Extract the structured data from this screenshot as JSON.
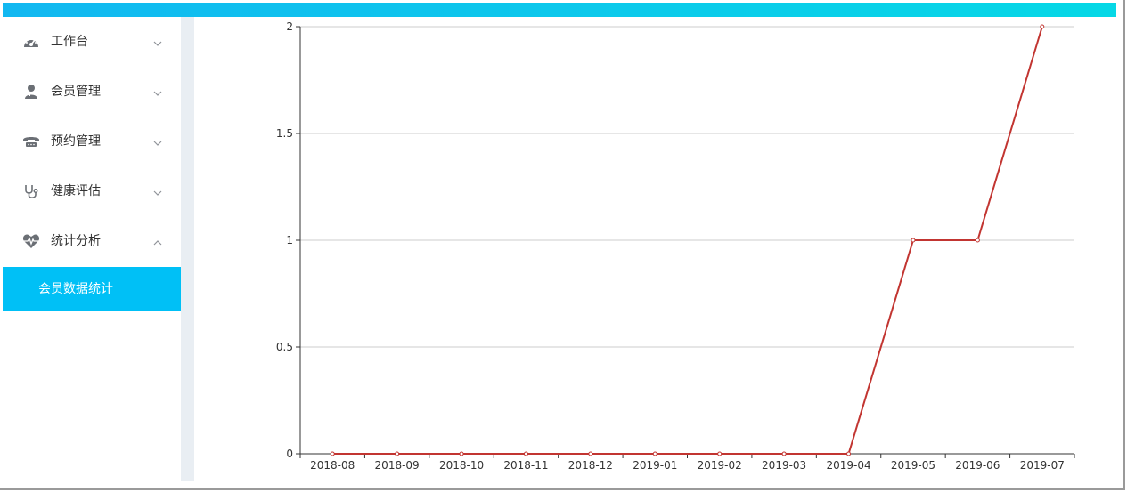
{
  "sidebar": {
    "items": [
      {
        "label": "工作台",
        "icon": "dashboard-icon",
        "expanded": false
      },
      {
        "label": "会员管理",
        "icon": "user-icon",
        "expanded": false
      },
      {
        "label": "预约管理",
        "icon": "phone-icon",
        "expanded": false
      },
      {
        "label": "健康评估",
        "icon": "stethoscope-icon",
        "expanded": false
      },
      {
        "label": "统计分析",
        "icon": "heartbeat-icon",
        "expanded": true
      }
    ],
    "active_submenu": {
      "label": "会员数据统计"
    }
  },
  "colors": {
    "topbar_start": "#12b8f1",
    "topbar_end": "#06d8e6",
    "active_submenu_bg": "#00c0f6",
    "line": "#c23531",
    "gridline": "#cccccc",
    "axis": "#333333"
  },
  "chart_data": {
    "type": "line",
    "categories": [
      "2018-08",
      "2018-09",
      "2018-10",
      "2018-11",
      "2018-12",
      "2019-01",
      "2019-02",
      "2019-03",
      "2019-04",
      "2019-05",
      "2019-06",
      "2019-07"
    ],
    "series": [
      {
        "values": [
          0,
          0,
          0,
          0,
          0,
          0,
          0,
          0,
          0,
          1,
          1,
          2
        ]
      }
    ],
    "ylim": [
      0,
      2
    ],
    "yticks": [
      "0",
      "0.5",
      "1",
      "1.5",
      "2"
    ],
    "grid": true,
    "title": "",
    "xlabel": "",
    "ylabel": ""
  }
}
